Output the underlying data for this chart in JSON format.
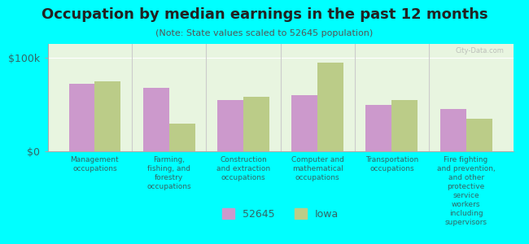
{
  "title": "Occupation by median earnings in the past 12 months",
  "subtitle": "(Note: State values scaled to 52645 population)",
  "background_color": "#00FFFF",
  "plot_bg_color": "#e8f5e0",
  "categories": [
    "Management\noccupations",
    "Farming,\nfishing, and\nforestry\noccupations",
    "Construction\nand extraction\noccupations",
    "Computer and\nmathematical\noccupations",
    "Transportation\noccupations",
    "Fire fighting\nand prevention,\nand other\nprotective\nservice\nworkers\nincluding\nsupervisors"
  ],
  "values_52645": [
    72000,
    68000,
    55000,
    60000,
    50000,
    45000
  ],
  "values_iowa": [
    75000,
    30000,
    58000,
    95000,
    55000,
    35000
  ],
  "color_52645": "#cc99cc",
  "color_iowa": "#bbcc88",
  "ylabel_ticks": [
    "$0",
    "$100k"
  ],
  "ytick_vals": [
    0,
    100000
  ],
  "ylim": [
    0,
    115000
  ],
  "legend_52645": "52645",
  "legend_iowa": "Iowa",
  "watermark": "City-Data.com"
}
